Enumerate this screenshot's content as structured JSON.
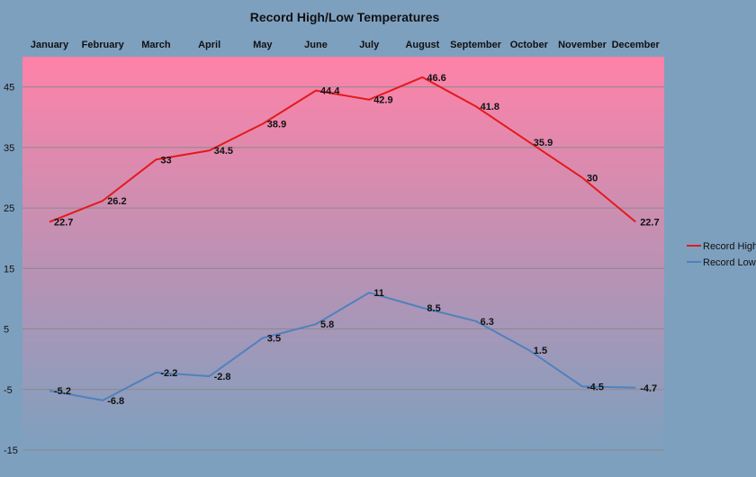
{
  "chart_data": {
    "type": "line",
    "title": "Record High/Low Temperatures",
    "xlabel": "",
    "ylabel": "",
    "categories": [
      "January",
      "February",
      "March",
      "April",
      "May",
      "June",
      "July",
      "August",
      "September",
      "October",
      "November",
      "December"
    ],
    "series": [
      {
        "name": "Record High",
        "color": "#e31a1c",
        "values": [
          22.7,
          26.2,
          33,
          34.5,
          38.9,
          44.4,
          42.9,
          46.6,
          41.8,
          35.9,
          30,
          22.7
        ],
        "labels": [
          "22.7",
          "26.2",
          "33",
          "34.5",
          "38.9",
          "44.4",
          "42.9",
          "46.6",
          "41.8",
          "35.9",
          "30",
          "22.7"
        ]
      },
      {
        "name": "Record Low",
        "color": "#4f81bd",
        "values": [
          -5.2,
          -6.8,
          -2.2,
          -2.8,
          3.5,
          5.8,
          11,
          8.5,
          6.3,
          1.5,
          -4.5,
          -4.7
        ],
        "labels": [
          "-5.2",
          "-6.8",
          "-2.2",
          "-2.8",
          "3.5",
          "5.8",
          "11",
          "8.5",
          "6.3",
          "1.5",
          "-4.5",
          "-4.7"
        ]
      }
    ],
    "yticks": [
      45,
      35,
      25,
      15,
      5,
      -5,
      -15
    ],
    "ytick_labels": [
      "45",
      "35",
      "25",
      "15",
      "5",
      "-5",
      "-15"
    ],
    "ylim": [
      -15,
      50
    ],
    "grid": true,
    "legend_position": "right",
    "category_axis_position": "top",
    "background_top_color": "#ff82a8",
    "background_bottom_color": "#7ea0bf"
  }
}
